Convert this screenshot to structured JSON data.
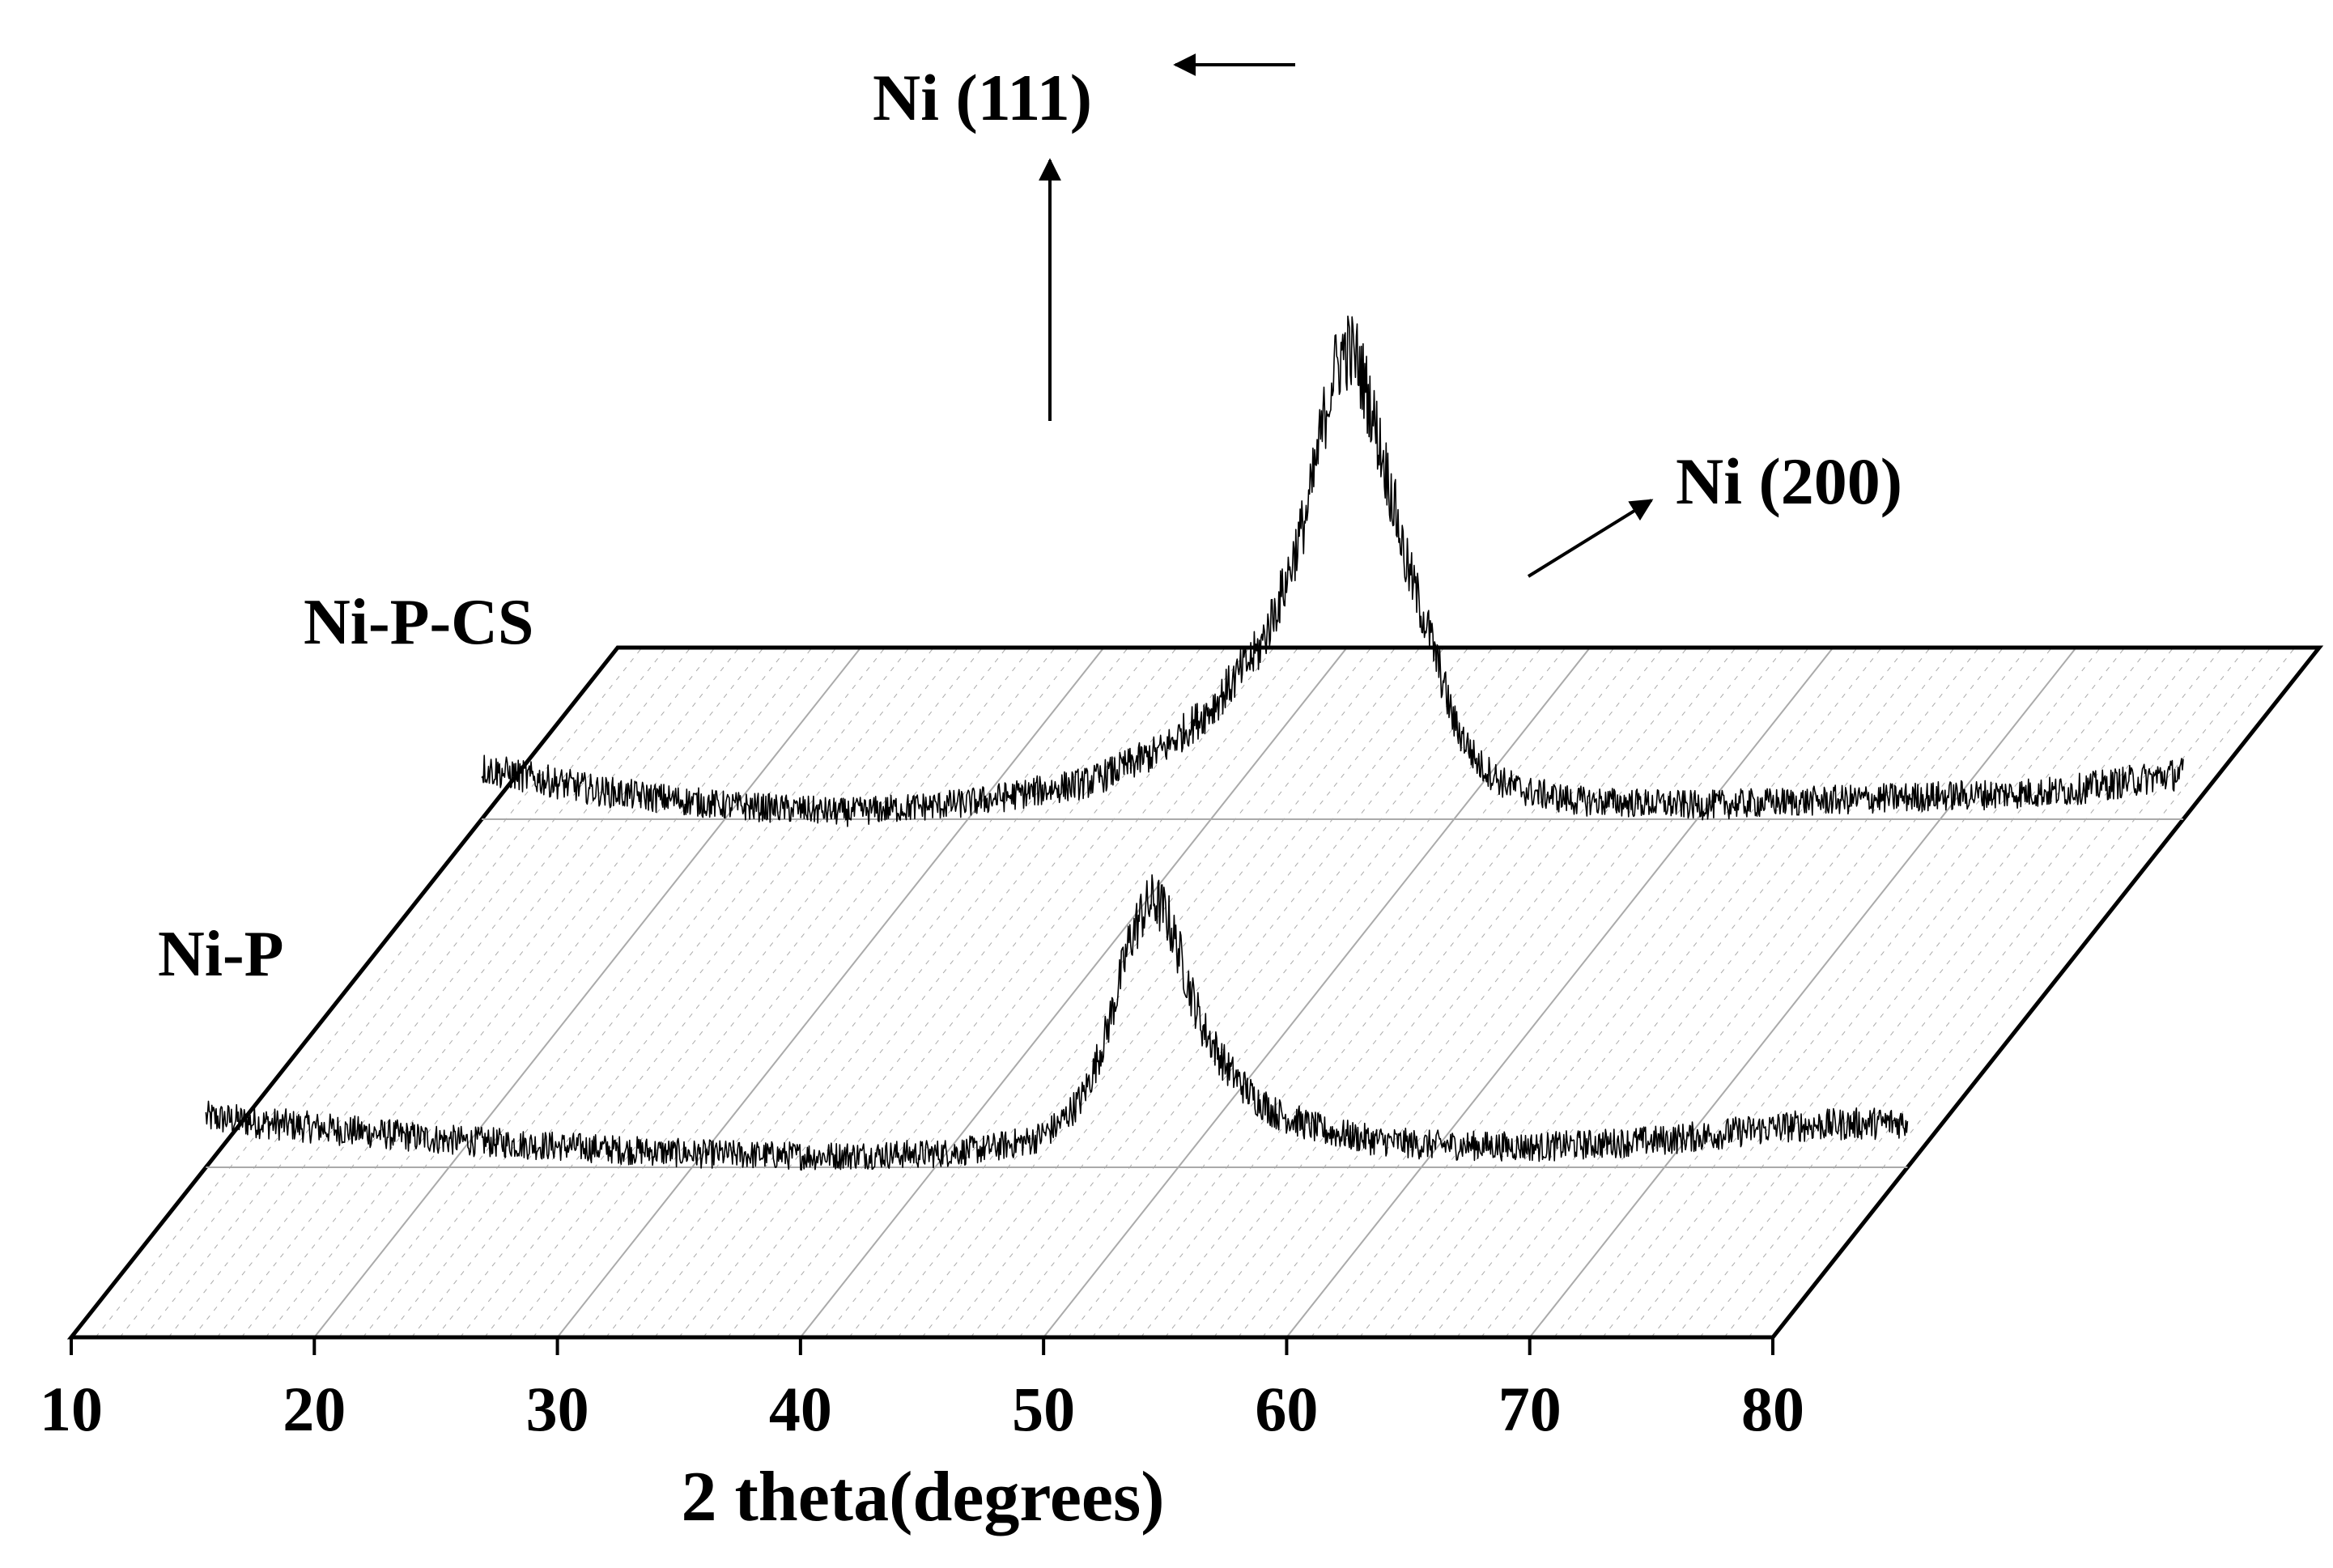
{
  "chart_data": {
    "type": "line",
    "title": "",
    "xlabel": "2 theta(degrees)",
    "ylabel": "",
    "xlim": [
      10,
      80
    ],
    "x_ticks": [
      "10",
      "20",
      "30",
      "40",
      "50",
      "60",
      "70",
      "80"
    ],
    "grid": true,
    "style": "3d-waterfall",
    "colors": {
      "line": "#000000",
      "grid": "#aaaaaa",
      "axis": "#000000"
    },
    "series": [
      {
        "name": "Ni-P",
        "x": [
          10,
          20,
          30,
          35,
          40,
          42,
          44,
          45,
          46,
          46.5,
          47,
          47.5,
          48,
          48.5,
          49,
          49.5,
          50,
          50.5,
          51,
          52,
          53,
          54,
          56,
          58,
          60,
          65,
          70,
          75,
          80
        ],
        "y": [
          0.22,
          0.12,
          0.06,
          0.05,
          0.06,
          0.08,
          0.12,
          0.18,
          0.3,
          0.42,
          0.58,
          0.78,
          1.0,
          1.12,
          1.18,
          1.12,
          0.96,
          0.78,
          0.62,
          0.44,
          0.32,
          0.24,
          0.16,
          0.12,
          0.1,
          0.09,
          0.12,
          0.18,
          0.2
        ]
      },
      {
        "name": "Ni-P-CS",
        "x": [
          10,
          15,
          20,
          25,
          30,
          35,
          38,
          40,
          42,
          43,
          44,
          44.5,
          45,
          45.5,
          46,
          46.5,
          47,
          47.5,
          48,
          49,
          50,
          51,
          52,
          53,
          55,
          60,
          65,
          70,
          75,
          80
        ],
        "y": [
          0.22,
          0.12,
          0.06,
          0.03,
          0.07,
          0.16,
          0.3,
          0.48,
          0.74,
          1.0,
          1.35,
          1.65,
          1.92,
          2.04,
          2.0,
          1.82,
          1.6,
          1.38,
          1.12,
          0.8,
          0.42,
          0.24,
          0.16,
          0.12,
          0.08,
          0.06,
          0.08,
          0.1,
          0.12,
          0.2
        ]
      }
    ],
    "annotations": [
      "Ni (111)",
      "Ni (200)"
    ]
  }
}
